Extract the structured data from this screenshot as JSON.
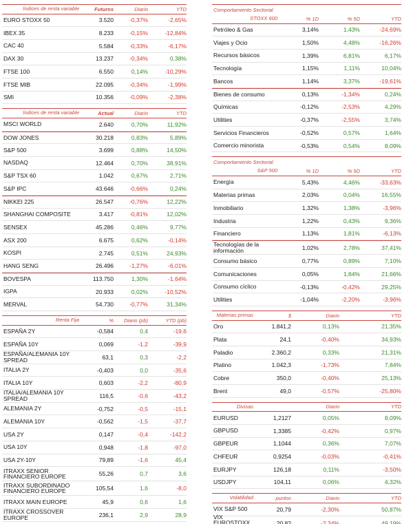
{
  "colors": {
    "accent": "#c9463d",
    "positive": "#3a8a2a",
    "negative": "#d23a2f"
  },
  "left": [
    {
      "key": "futuros",
      "header": [
        "Índices de renta variable",
        "Futuros",
        "Diario",
        "YTD"
      ],
      "rows": [
        [
          "EURO STOXX 50",
          "3.520",
          "-0,37%",
          "-2,65%"
        ],
        [
          "IBEX 35",
          "8.233",
          "-0,15%",
          "-12,84%"
        ],
        [
          "CAC 40",
          "5.584",
          "-0,33%",
          "-6,17%"
        ],
        [
          "DAX 30",
          "13.237",
          "-0,34%",
          "0,38%"
        ],
        [
          "FTSE 100",
          "6.550",
          "0,14%",
          "-10,29%"
        ],
        [
          "FTSE MIB",
          "22.095",
          "-0,34%",
          "-1,99%"
        ],
        [
          "SMI",
          "10.356",
          "-0,09%",
          "-2,38%"
        ]
      ]
    },
    {
      "key": "actual",
      "header": [
        "Índices de renta variable",
        "Actual",
        "Diario",
        "YTD"
      ],
      "rows": [
        [
          "MSCI WORLD",
          "2.640",
          "0,70%",
          "11,92%"
        ],
        [
          "DOW JONES",
          "30.218",
          "0,83%",
          "5,89%"
        ],
        [
          "S&P 500",
          "3.699",
          "0,88%",
          "14,50%"
        ],
        [
          "NASDAQ",
          "12.464",
          "0,70%",
          "38,91%"
        ],
        [
          "S&P TSX 60",
          "1.042",
          "0,67%",
          "2,71%"
        ],
        [
          "S&P IPC",
          "43.646",
          "-0,66%",
          "0,24%"
        ],
        [
          "NIKKEI 225",
          "26.547",
          "-0,76%",
          "12,22%"
        ],
        [
          "SHANGHAI COMPOSITE",
          "3.417",
          "-0,81%",
          "12,02%"
        ],
        [
          "SENSEX",
          "45.286",
          "0,46%",
          "9,77%"
        ],
        [
          "ASX 200",
          "6.675",
          "0,62%",
          "-0,14%"
        ],
        [
          "KOSPI",
          "2.745",
          "0,51%",
          "24,93%"
        ],
        [
          "HANG SENG",
          "26.496",
          "-1,27%",
          "-6,01%"
        ],
        [
          "BOVESPA",
          "113.750",
          "1,30%",
          "-1,64%"
        ],
        [
          "IGPA",
          "20.933",
          "0,02%",
          "-10,52%"
        ],
        [
          "MERVAL",
          "54.730",
          "-0,77%",
          "31,34%"
        ]
      ],
      "separators_after": [
        0,
        5,
        11
      ]
    },
    {
      "key": "renta_fija",
      "header": [
        "Renta Fija",
        "%",
        "Diario (pb)",
        "YTD (pb)"
      ],
      "rows": [
        [
          "ESPAÑA 2Y",
          "-0,584",
          "0,4",
          "-19,6"
        ],
        [
          "ESPAÑA 10Y",
          "0,069",
          "-1,2",
          "-39,9"
        ],
        [
          "ESPAÑA/ALEMANIA 10Y SPREAD",
          "63,1",
          "0,3",
          "-2,2"
        ],
        [
          "ITALIA 2Y",
          "-0,403",
          "0,0",
          "-35,6"
        ],
        [
          "ITALIA 10Y",
          "0,603",
          "-2,2",
          "-80,9"
        ],
        [
          "ITALIA/ALEMANIA 10Y SPREAD",
          "116,5",
          "-0,6",
          "-43,2"
        ],
        [
          "ALEMANIA 2Y",
          "-0,752",
          "-0,5",
          "-15,1"
        ],
        [
          "ALEMANIA 10Y",
          "-0,562",
          "-1,5",
          "-37,7"
        ],
        [
          "USA 2Y",
          "0,147",
          "-0,4",
          "-142,2"
        ],
        [
          "USA 10Y",
          "0,948",
          "-1,8",
          "-97,0"
        ],
        [
          "USA 2Y-10Y",
          "79,89",
          "-1,6",
          "45,4"
        ],
        [
          "ITRAXX SENIOR FINANCIERO EUROPE",
          "55,26",
          "0,7",
          "3,6"
        ],
        [
          "ITRAXX SUBORDINADO FINANCIERO EUROPE",
          "105,54",
          "1,6",
          "-8,0"
        ],
        [
          "ITRAXX MAIN EUROPE",
          "45,9",
          "0,6",
          "1,6"
        ],
        [
          "ITRAXX CROSSOVER EUROPE",
          "236,1",
          "2,9",
          "28,9"
        ]
      ]
    }
  ],
  "right": [
    {
      "key": "stoxx600",
      "title": "Comportamiento Sectorial",
      "header": [
        "STOXX 600",
        "% 1D",
        "% 5D",
        "YTD"
      ],
      "rows": [
        [
          "Petróleo & Gas",
          "3,14%",
          "1,43%",
          "-24,69%"
        ],
        [
          "Viajes y Ocio",
          "1,50%",
          "4,48%",
          "-16,26%"
        ],
        [
          "Recursos básicos",
          "1,39%",
          "6,81%",
          "6,17%"
        ],
        [
          "Tecnología",
          "1,15%",
          "1,11%",
          "10,04%"
        ],
        [
          "Bancos",
          "1,14%",
          "3,37%",
          "-19,61%"
        ],
        [
          "Bienes de consumo",
          "0,13%",
          "-1,34%",
          "0,24%"
        ],
        [
          "Químicas",
          "-0,12%",
          "-2,53%",
          "4,29%"
        ],
        [
          "Utilities",
          "-0,37%",
          "-2,55%",
          "3,74%"
        ],
        [
          "Servicios Financieros",
          "-0,52%",
          "0,57%",
          "1,64%"
        ],
        [
          "Comercio minorista",
          "-0,53%",
          "0,54%",
          "8,09%"
        ]
      ],
      "separators_after": [
        4
      ]
    },
    {
      "key": "sp500",
      "title": "Comportamiento Sectorial",
      "header": [
        "S&P 500",
        "% 1D",
        "% 5D",
        "YTD"
      ],
      "rows": [
        [
          "Energía",
          "5,43%",
          "4,46%",
          "-33,63%"
        ],
        [
          "Materias primas",
          "2,03%",
          "0,04%",
          "16,55%"
        ],
        [
          "Inmobiliario",
          "1,32%",
          "1,38%",
          "-3,96%"
        ],
        [
          "Industria",
          "1,22%",
          "0,43%",
          "9,36%"
        ],
        [
          "Financiero",
          "1,13%",
          "1,81%",
          "-6,13%"
        ],
        [
          "Tecnologías de la información",
          "1,02%",
          "2,78%",
          "37,41%"
        ],
        [
          "Consumo básico",
          "0,77%",
          "0,89%",
          "7,10%"
        ],
        [
          "Comunicaciones",
          "0,05%",
          "1,84%",
          "21,66%"
        ],
        [
          "Consumo cíclico",
          "-0,13%",
          "-0,42%",
          "29,25%"
        ],
        [
          "Utilities",
          "-1,04%",
          "-2,20%",
          "-3,96%"
        ]
      ],
      "separators_after": [
        4
      ]
    },
    {
      "key": "materias",
      "header": [
        "Materias primas",
        "$",
        "Diario",
        "YTD"
      ],
      "rows": [
        [
          "Oro",
          "1.841,2",
          "0,13%",
          "21,35%"
        ],
        [
          "Plata",
          "24,1",
          "-0,40%",
          "34,93%"
        ],
        [
          "Paladio",
          "2.360,2",
          "0,33%",
          "21,31%"
        ],
        [
          "Platino",
          "1.042,3",
          "-1,73%",
          "7,84%"
        ],
        [
          "Cobre",
          "350,0",
          "-0,40%",
          "25,13%"
        ],
        [
          "Brent",
          "49,0",
          "-0,57%",
          "-25,80%"
        ]
      ]
    },
    {
      "key": "divisas",
      "header": [
        "Divisas",
        "",
        "Diario",
        "YTD"
      ],
      "rows": [
        [
          "EURUSD",
          "1,2127",
          "0,05%",
          "8,09%"
        ],
        [
          "GBPUSD",
          "1,3385",
          "-0,42%",
          "0,97%"
        ],
        [
          "GBPEUR",
          "1,1044",
          "0,36%",
          "7,07%"
        ],
        [
          "CHFEUR",
          "0,9254",
          "-0,03%",
          "-0,41%"
        ],
        [
          "EURJPY",
          "126,18",
          "0,11%",
          "-3,50%"
        ],
        [
          "USDJPY",
          "104,11",
          "0,06%",
          "4,32%"
        ]
      ]
    },
    {
      "key": "volatilidad",
      "header": [
        "Volatilidad",
        "puntos",
        "Diario",
        "YTD"
      ],
      "rows": [
        [
          "VIX S&P 500",
          "20,79",
          "-2,30%",
          "50,87%"
        ],
        [
          "VIX EUROSTOXX 50",
          "20,82",
          "-2,34%",
          "49,19%"
        ]
      ]
    }
  ]
}
